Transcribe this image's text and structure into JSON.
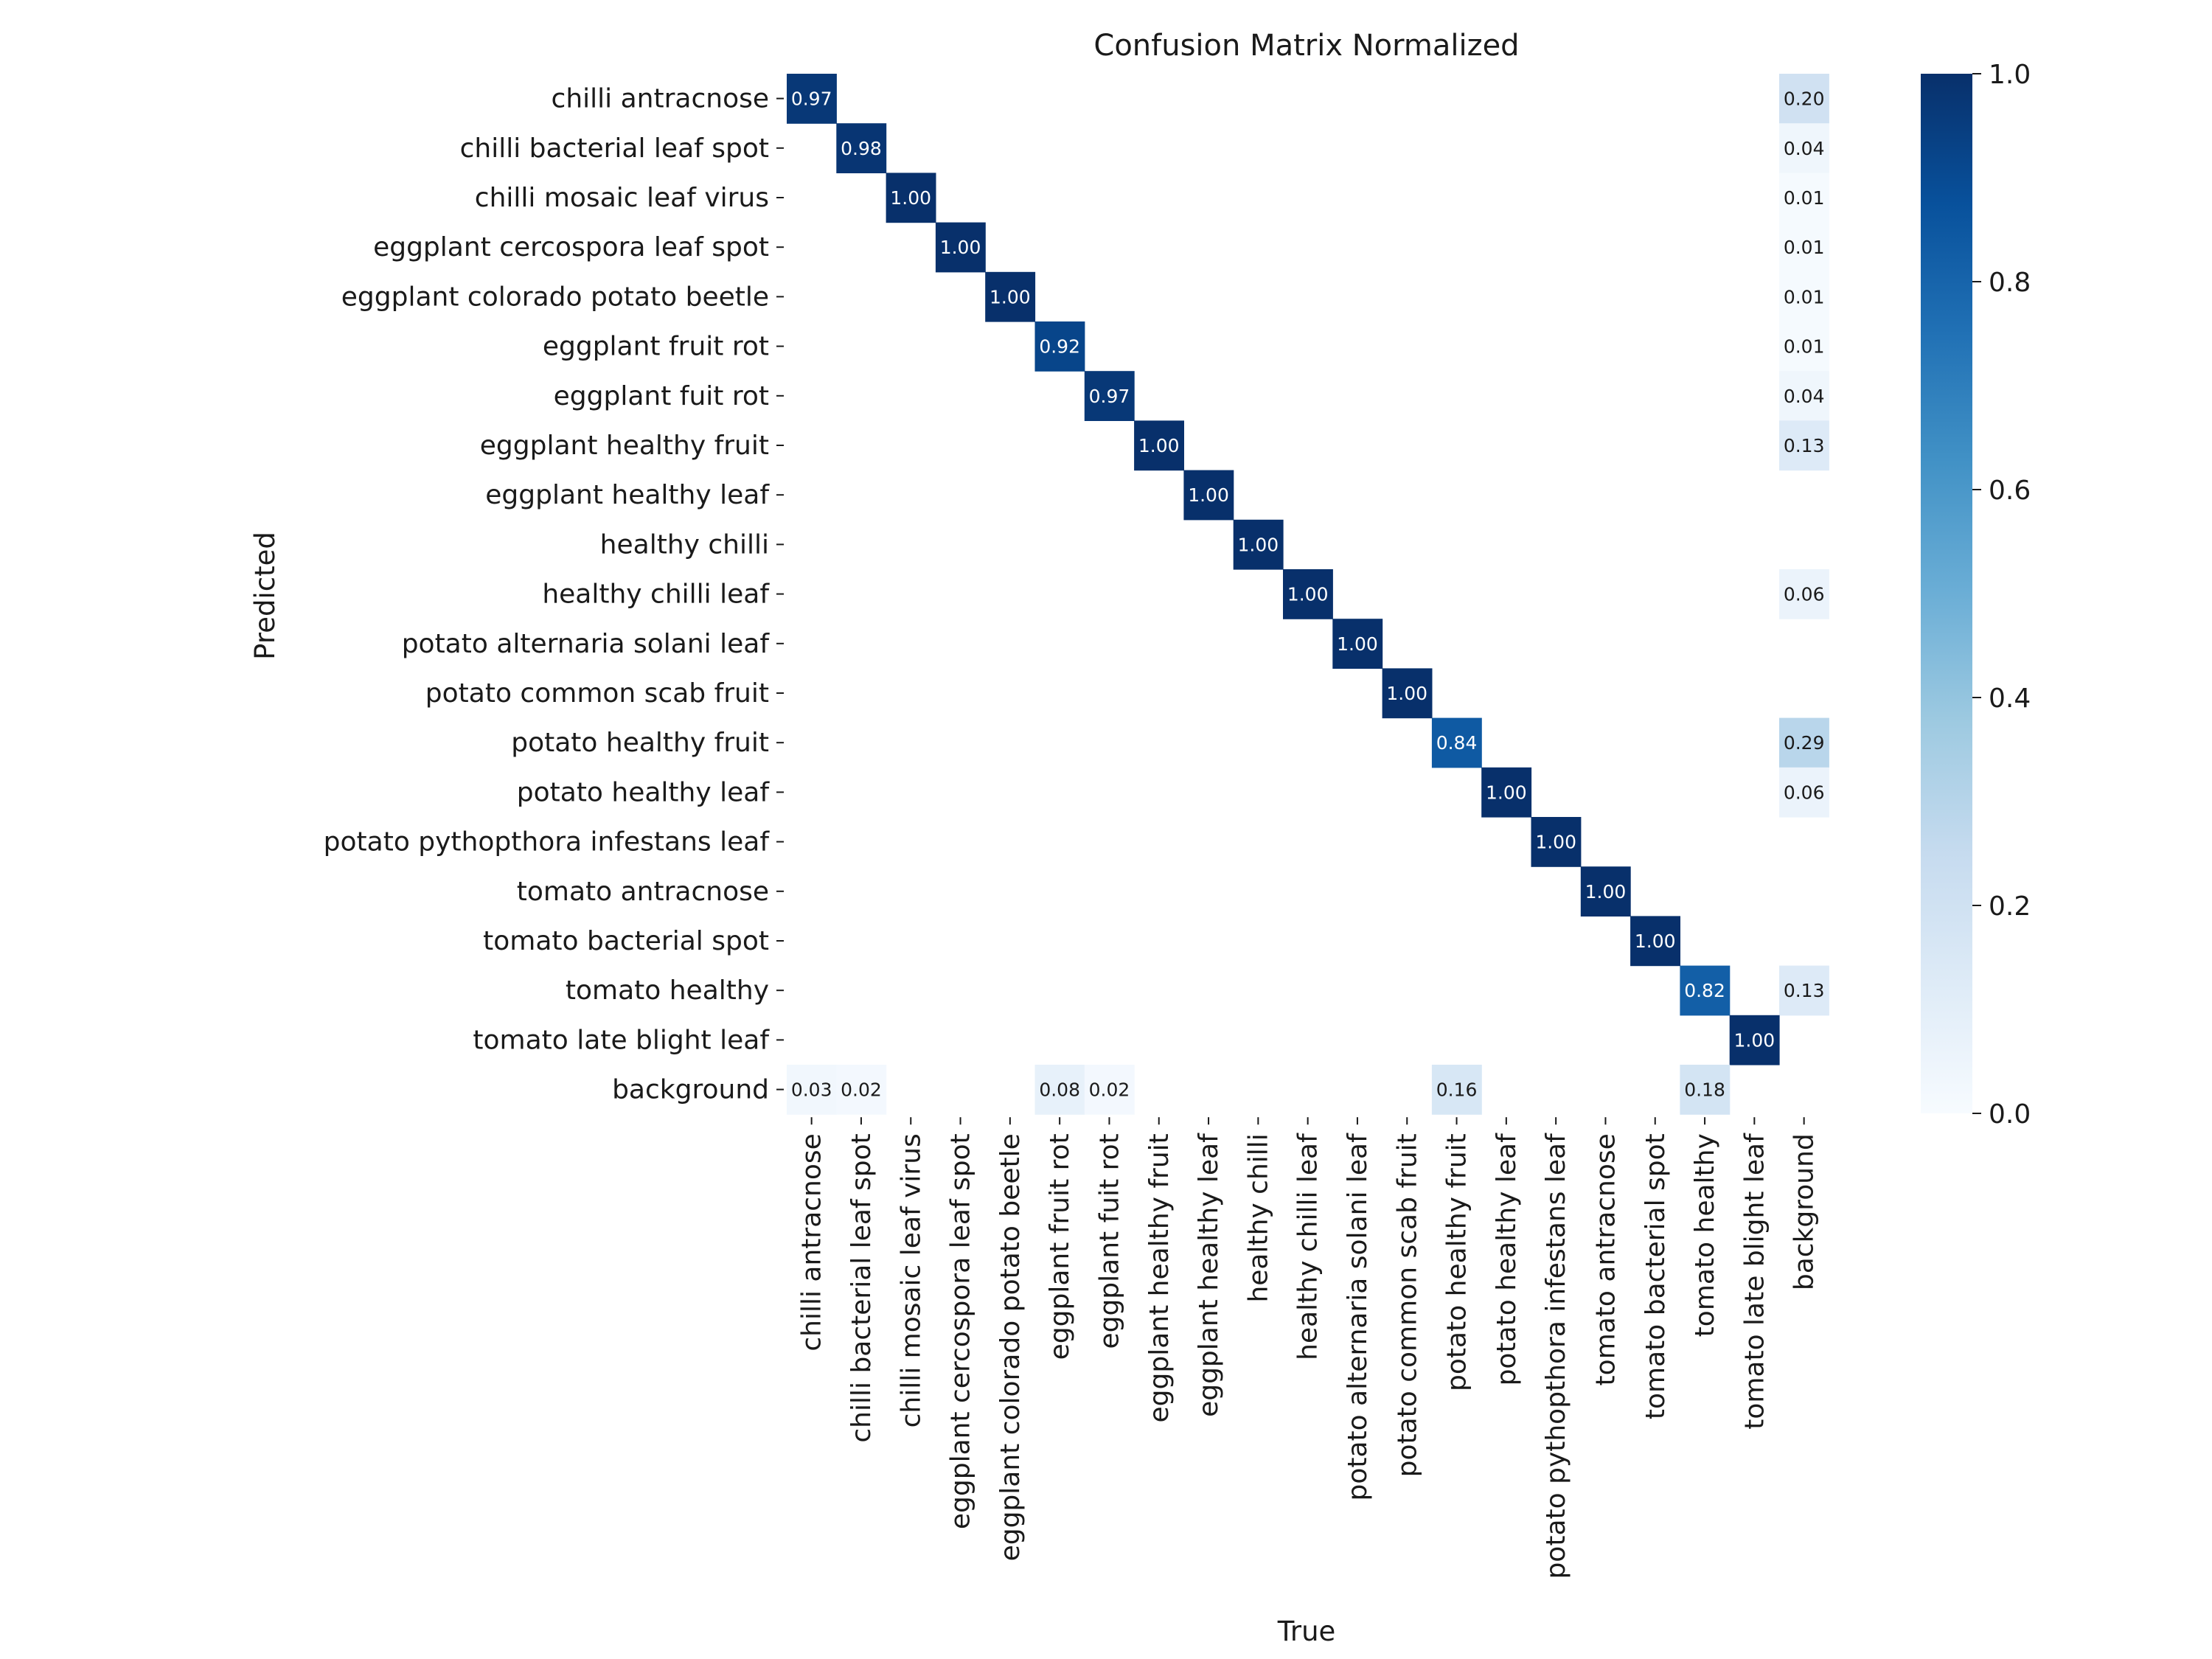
{
  "chart_data": {
    "type": "heatmap",
    "title": "Confusion Matrix Normalized",
    "xlabel": "True",
    "ylabel": "Predicted",
    "classes": [
      "chilli antracnose",
      "chilli bacterial leaf spot",
      "chilli mosaic leaf virus",
      "eggplant cercospora leaf spot",
      "eggplant colorado potato beetle",
      "eggplant fruit rot",
      "eggplant fuit rot",
      "eggplant healthy fruit",
      "eggplant healthy leaf",
      "healthy chilli",
      "healthy chilli leaf",
      "potato alternaria solani leaf",
      "potato common scab fruit",
      "potato healthy fruit",
      "potato healthy leaf",
      "potato pythopthora infestans leaf",
      "tomato antracnose",
      "tomato bacterial spot",
      "tomato healthy",
      "tomato late blight leaf",
      "background"
    ],
    "cells": [
      {
        "row": 0,
        "col": 0,
        "value": 0.97,
        "label": "0.97"
      },
      {
        "row": 0,
        "col": 20,
        "value": 0.2,
        "label": "0.20"
      },
      {
        "row": 1,
        "col": 1,
        "value": 0.98,
        "label": "0.98"
      },
      {
        "row": 1,
        "col": 20,
        "value": 0.04,
        "label": "0.04"
      },
      {
        "row": 2,
        "col": 2,
        "value": 1.0,
        "label": "1.00"
      },
      {
        "row": 2,
        "col": 20,
        "value": 0.01,
        "label": "0.01"
      },
      {
        "row": 3,
        "col": 3,
        "value": 1.0,
        "label": "1.00"
      },
      {
        "row": 3,
        "col": 20,
        "value": 0.01,
        "label": "0.01"
      },
      {
        "row": 4,
        "col": 4,
        "value": 1.0,
        "label": "1.00"
      },
      {
        "row": 4,
        "col": 20,
        "value": 0.01,
        "label": "0.01"
      },
      {
        "row": 5,
        "col": 5,
        "value": 0.92,
        "label": "0.92"
      },
      {
        "row": 5,
        "col": 20,
        "value": 0.01,
        "label": "0.01"
      },
      {
        "row": 6,
        "col": 6,
        "value": 0.97,
        "label": "0.97"
      },
      {
        "row": 6,
        "col": 20,
        "value": 0.04,
        "label": "0.04"
      },
      {
        "row": 7,
        "col": 7,
        "value": 1.0,
        "label": "1.00"
      },
      {
        "row": 7,
        "col": 20,
        "value": 0.13,
        "label": "0.13"
      },
      {
        "row": 8,
        "col": 8,
        "value": 1.0,
        "label": "1.00"
      },
      {
        "row": 9,
        "col": 9,
        "value": 1.0,
        "label": "1.00"
      },
      {
        "row": 10,
        "col": 10,
        "value": 1.0,
        "label": "1.00"
      },
      {
        "row": 10,
        "col": 20,
        "value": 0.06,
        "label": "0.06"
      },
      {
        "row": 11,
        "col": 11,
        "value": 1.0,
        "label": "1.00"
      },
      {
        "row": 12,
        "col": 12,
        "value": 1.0,
        "label": "1.00"
      },
      {
        "row": 13,
        "col": 13,
        "value": 0.84,
        "label": "0.84"
      },
      {
        "row": 13,
        "col": 20,
        "value": 0.29,
        "label": "0.29"
      },
      {
        "row": 14,
        "col": 14,
        "value": 1.0,
        "label": "1.00"
      },
      {
        "row": 14,
        "col": 20,
        "value": 0.06,
        "label": "0.06"
      },
      {
        "row": 15,
        "col": 15,
        "value": 1.0,
        "label": "1.00"
      },
      {
        "row": 16,
        "col": 16,
        "value": 1.0,
        "label": "1.00"
      },
      {
        "row": 17,
        "col": 17,
        "value": 1.0,
        "label": "1.00"
      },
      {
        "row": 18,
        "col": 18,
        "value": 0.82,
        "label": "0.82"
      },
      {
        "row": 18,
        "col": 20,
        "value": 0.13,
        "label": "0.13"
      },
      {
        "row": 19,
        "col": 19,
        "value": 1.0,
        "label": "1.00"
      },
      {
        "row": 20,
        "col": 0,
        "value": 0.03,
        "label": "0.03"
      },
      {
        "row": 20,
        "col": 1,
        "value": 0.02,
        "label": "0.02"
      },
      {
        "row": 20,
        "col": 5,
        "value": 0.08,
        "label": "0.08"
      },
      {
        "row": 20,
        "col": 6,
        "value": 0.02,
        "label": "0.02"
      },
      {
        "row": 20,
        "col": 13,
        "value": 0.16,
        "label": "0.16"
      },
      {
        "row": 20,
        "col": 18,
        "value": 0.18,
        "label": "0.18"
      }
    ],
    "colorbar": {
      "range": [
        0.0,
        1.0
      ],
      "ticks": [
        "0.0",
        "0.2",
        "0.4",
        "0.6",
        "0.8",
        "1.0"
      ],
      "colormap": "Blues",
      "low_color": "#f7fbff",
      "high_color": "#08306b"
    },
    "grid": false,
    "legend": "colorbar-right"
  }
}
